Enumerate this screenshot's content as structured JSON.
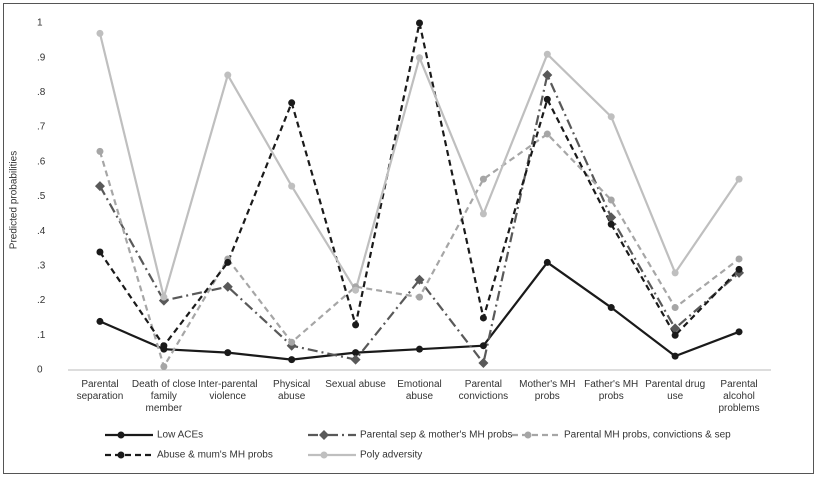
{
  "chart_data": {
    "type": "line",
    "y_label": "Predicted probabilities",
    "categories": [
      "Parental separation",
      "Death of close family member",
      "Inter-parental violence",
      "Physical abuse",
      "Sexual abuse",
      "Emotional abuse",
      "Parental convictions",
      "Mother's MH probs",
      "Father's MH probs",
      "Parental drug use",
      "Parental alcohol problems"
    ],
    "series": [
      {
        "name": "Low ACEs",
        "color": "#1a1a1a",
        "dash": "solid",
        "marker": "circle",
        "values": [
          0.14,
          0.06,
          0.05,
          0.03,
          0.05,
          0.06,
          0.07,
          0.31,
          0.18,
          0.04,
          0.11
        ]
      },
      {
        "name": "Parental sep & mother's MH probs",
        "color": "#595959",
        "dash": "dashdot",
        "marker": "diamond",
        "values": [
          0.53,
          0.2,
          0.24,
          0.07,
          0.03,
          0.26,
          0.02,
          0.85,
          0.44,
          0.12,
          0.28
        ]
      },
      {
        "name": "Parental MH probs, convictions & sep",
        "color": "#a6a6a6",
        "dash": "dashed",
        "marker": "circle",
        "values": [
          0.63,
          0.01,
          0.32,
          0.08,
          0.24,
          0.21,
          0.55,
          0.68,
          0.49,
          0.18,
          0.32
        ]
      },
      {
        "name": "Abuse & mum's MH probs",
        "color": "#1a1a1a",
        "dash": "dashed",
        "marker": "circle",
        "values": [
          0.34,
          0.07,
          0.31,
          0.77,
          0.13,
          1.0,
          0.15,
          0.78,
          0.42,
          0.1,
          0.29
        ]
      },
      {
        "name": "Poly adversity",
        "color": "#bfbfbf",
        "dash": "solid",
        "marker": "circle",
        "values": [
          0.97,
          0.21,
          0.85,
          0.53,
          0.23,
          0.9,
          0.45,
          0.91,
          0.73,
          0.28,
          0.55
        ]
      }
    ],
    "ylim": [
      0,
      1
    ],
    "yticks": [
      0,
      {
        "value": 0.1,
        "label": ".1"
      },
      {
        "value": 0.2,
        "label": ".2"
      },
      {
        "value": 0.3,
        "label": ".3"
      },
      {
        "value": 0.4,
        "label": ".4"
      },
      {
        "value": 0.5,
        "label": ".5"
      },
      {
        "value": 0.6,
        "label": ".6"
      },
      {
        "value": 0.7,
        "label": ".7"
      },
      {
        "value": 0.8,
        "label": ".8"
      },
      {
        "value": 0.9,
        "label": ".9"
      },
      1
    ],
    "grid": false
  }
}
